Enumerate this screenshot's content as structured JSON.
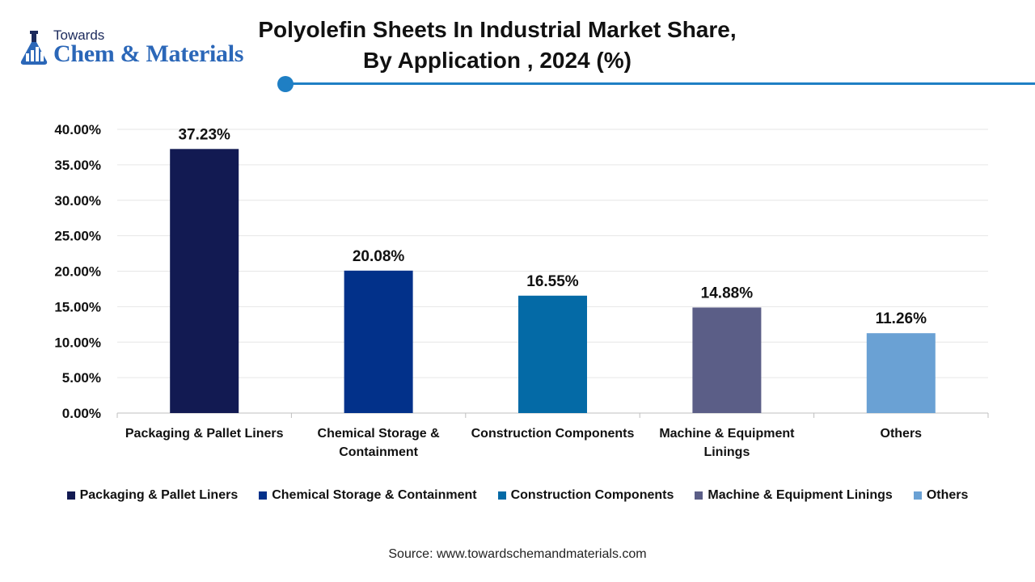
{
  "logo": {
    "small": "Towards",
    "big": "Chem & Materials"
  },
  "title_line1": "Polyolefin Sheets In Industrial Market Share,",
  "title_line2": "By Application , 2024 (%)",
  "source": "Source: www.towardschemandmaterials.com",
  "chart_data": {
    "type": "bar",
    "title": "Polyolefin Sheets In Industrial Market Share, By Application , 2024 (%)",
    "categories": [
      "Packaging & Pallet Liners",
      "Chemical Storage & Containment",
      "Construction Components",
      "Machine & Equipment Linings",
      "Others"
    ],
    "category_tick_lines": [
      [
        "Packaging & Pallet Liners"
      ],
      [
        "Chemical Storage &",
        "Containment"
      ],
      [
        "Construction Components"
      ],
      [
        "Machine & Equipment",
        "Linings"
      ],
      [
        "Others"
      ]
    ],
    "values": [
      37.23,
      20.08,
      16.55,
      14.88,
      11.26
    ],
    "data_labels": [
      "37.23%",
      "20.08%",
      "16.55%",
      "14.88%",
      "11.26%"
    ],
    "colors": [
      "#121a52",
      "#02318a",
      "#046aa6",
      "#5b5e87",
      "#6aa1d4"
    ],
    "ylim": [
      0,
      40
    ],
    "yticks": [
      "0.00%",
      "5.00%",
      "10.00%",
      "15.00%",
      "20.00%",
      "25.00%",
      "30.00%",
      "35.00%",
      "40.00%"
    ],
    "grid": true,
    "legend_position": "bottom"
  }
}
